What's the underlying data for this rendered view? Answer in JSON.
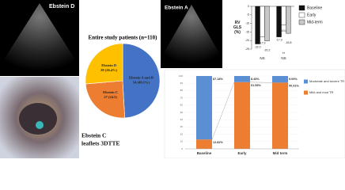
{
  "image_labels": [
    "Ebstein D",
    "Ebstein A",
    "Ebstein C",
    "leaflets 3DTTE"
  ],
  "chart_data": [
    {
      "type": "pie",
      "title": "Entire study patients (n=110)",
      "categories": [
        "Ebstein A and B",
        "Ebstein C",
        "Ebstein D"
      ],
      "values": [
        54,
        27,
        29
      ],
      "value_labels": [
        "54 (49.1%)",
        "27 (24.5)",
        "29 (26.4%)"
      ],
      "colors": [
        "#4472c4",
        "#ed7d31",
        "#ffc000"
      ]
    },
    {
      "type": "bar",
      "y_label": "RV GLS (%)",
      "categories": [
        null,
        null
      ],
      "series": [
        {
          "name": "Baseline",
          "color": "#111111",
          "values": [
            -22.0,
            -17.9
          ],
          "value_labels": [
            "-22.0",
            "-17.9"
          ]
        },
        {
          "name": "Early",
          "color": "#ffffff",
          "values": [
            -17.9,
            -10.8
          ],
          "value_labels": [
            "-17.9",
            "-10.8"
          ]
        },
        {
          "name": "Mid-term",
          "color": "#c8c8c8",
          "values": [
            -20.2,
            -15.8
          ],
          "value_labels": [
            "-20.2",
            "-15.8"
          ]
        }
      ],
      "ylim": [
        -25,
        0
      ],
      "yticks": [
        0,
        -5,
        -10,
        -15,
        -20,
        -25
      ],
      "annotations": [
        "NS",
        "NS",
        "**"
      ]
    },
    {
      "type": "stacked_bar",
      "categories": [
        "Baseline",
        "Early",
        "Mid term"
      ],
      "series": [
        {
          "name": "Moderate and severe TR",
          "color": "#5b8fd4",
          "values": [
            87.18,
            8.45,
            9.09
          ],
          "value_labels": [
            "87.18%",
            "8.45%",
            "9.09%"
          ]
        },
        {
          "name": "Mild and mod TR",
          "color": "#ed7d31",
          "values": [
            12.82,
            91.55,
            90.91
          ],
          "value_labels": [
            "12.82%",
            "91.55%",
            "90.91%"
          ]
        }
      ],
      "ylim": [
        0,
        100
      ],
      "yticks": [
        0,
        10,
        20,
        30,
        40,
        50,
        60,
        70,
        80,
        90,
        100
      ]
    }
  ]
}
